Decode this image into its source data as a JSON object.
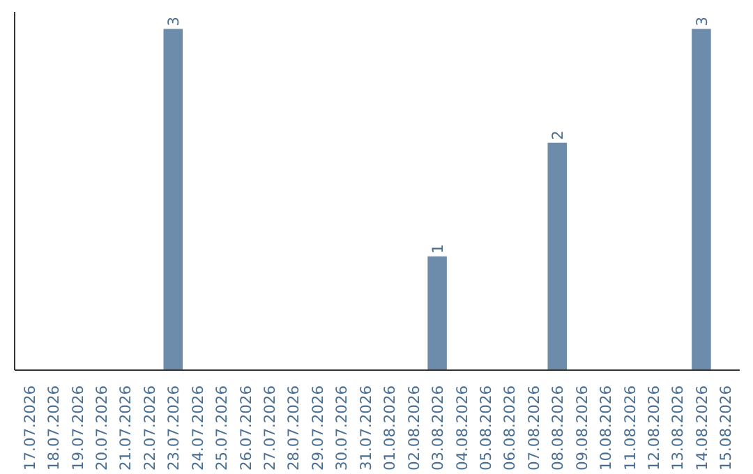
{
  "chart_data": {
    "type": "bar",
    "categories": [
      "17.07.2026",
      "18.07.2026",
      "19.07.2026",
      "20.07.2026",
      "21.07.2026",
      "22.07.2026",
      "23.07.2026",
      "24.07.2026",
      "25.07.2026",
      "26.07.2026",
      "27.07.2026",
      "28.07.2026",
      "29.07.2026",
      "30.07.2026",
      "31.07.2026",
      "01.08.2026",
      "02.08.2026",
      "03.08.2026",
      "04.08.2026",
      "05.08.2026",
      "06.08.2026",
      "07.08.2026",
      "08.08.2026",
      "09.08.2026",
      "10.08.2026",
      "11.08.2026",
      "12.08.2026",
      "13.08.2026",
      "14.08.2026",
      "15.08.2026"
    ],
    "values": [
      0,
      0,
      0,
      0,
      0,
      0,
      3,
      0,
      0,
      0,
      0,
      0,
      0,
      0,
      0,
      0,
      0,
      1,
      0,
      0,
      0,
      0,
      2,
      0,
      0,
      0,
      0,
      0,
      3,
      0
    ],
    "value_labels": [
      null,
      null,
      null,
      null,
      null,
      null,
      "3",
      null,
      null,
      null,
      null,
      null,
      null,
      null,
      null,
      null,
      null,
      "1",
      null,
      null,
      null,
      null,
      "2",
      null,
      null,
      null,
      null,
      null,
      "3",
      null
    ],
    "color": "#6d8cab",
    "grid": false,
    "tick_labels": "x"
  }
}
